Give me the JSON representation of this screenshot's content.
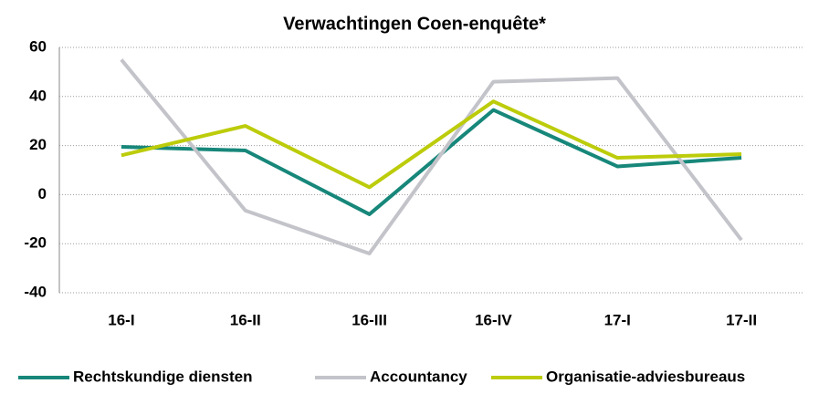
{
  "chart_data": {
    "type": "line",
    "title": "Verwachtingen Coen-enquête*",
    "categories": [
      "16-I",
      "16-II",
      "16-III",
      "16-IV",
      "17-I",
      "17-II"
    ],
    "series": [
      {
        "name": "Rechtskundige diensten",
        "color": "#17877a",
        "values": [
          19.5,
          18,
          -8,
          34.5,
          11.5,
          15
        ]
      },
      {
        "name": "Accountancy",
        "color": "#c3c3ca",
        "values": [
          55,
          -6.5,
          -24,
          46,
          47.5,
          -18.5
        ]
      },
      {
        "name": "Organisatie-adviesbureaus",
        "color": "#bccc0a",
        "values": [
          16,
          28,
          3,
          38,
          15,
          16.5
        ]
      }
    ],
    "ylim": [
      -40,
      60
    ],
    "yticks": [
      -40,
      -20,
      0,
      20,
      40,
      60
    ],
    "grid": true,
    "legend": "bottom"
  }
}
